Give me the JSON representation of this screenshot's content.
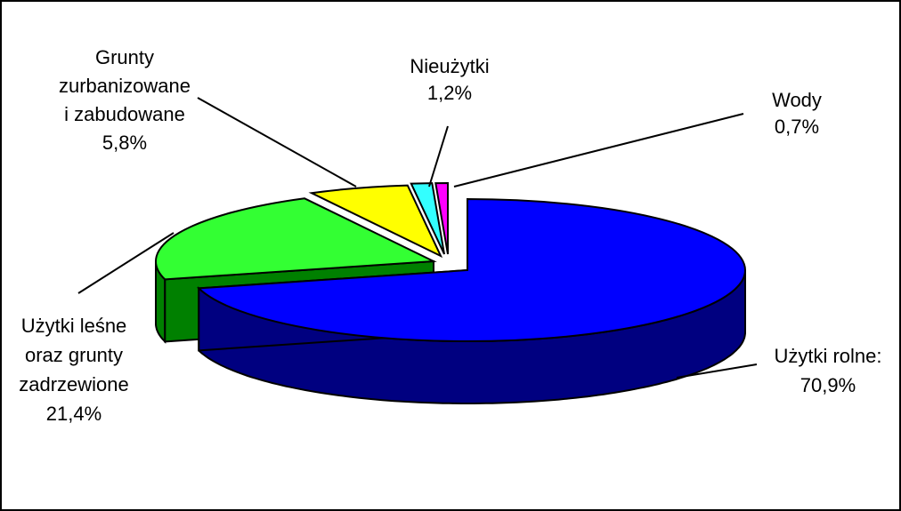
{
  "chart_data": {
    "type": "pie",
    "style": "3d-exploded",
    "title": "",
    "slices": [
      {
        "id": "rolne",
        "label_lines": [
          "Użytki rolne:",
          "70,9%"
        ],
        "value": 70.9,
        "color": "#0000ff",
        "side_color": "#000080"
      },
      {
        "id": "lesne",
        "label_lines": [
          "Użytki leśne",
          "oraz grunty",
          "zadrzewione",
          "21,4%"
        ],
        "value": 21.4,
        "color": "#33ff33",
        "side_color": "#008000"
      },
      {
        "id": "grunty",
        "label_lines": [
          "Grunty",
          "zurbanizowane",
          "i zabudowane",
          "5,8%"
        ],
        "value": 5.8,
        "color": "#ffff00",
        "side_color": "#808000"
      },
      {
        "id": "nieuz",
        "label_lines": [
          "Nieużytki",
          "1,2%"
        ],
        "value": 1.2,
        "color": "#33ffff",
        "side_color": "#008080"
      },
      {
        "id": "wody",
        "label_lines": [
          "Wody",
          "0,7%"
        ],
        "value": 0.7,
        "color": "#ff00ff",
        "side_color": "#800080"
      }
    ]
  }
}
